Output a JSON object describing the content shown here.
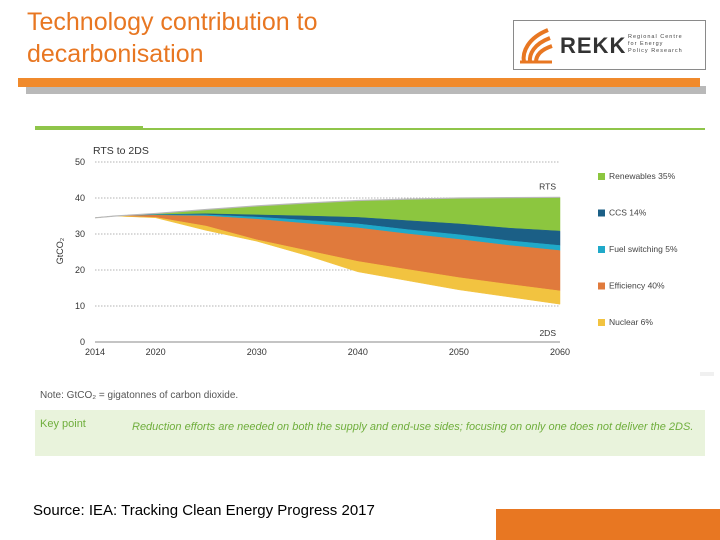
{
  "slide": {
    "title": "Technology contribution to decarbonisation",
    "source": "Source: IEA: Tracking Clean Energy Progress 2017"
  },
  "logo": {
    "name": "REKK",
    "tagline_lines": [
      "Regional Centre",
      "for Energy",
      "Policy Research"
    ]
  },
  "figure": {
    "note": "Note: GtCO₂ = gigatonnes of carbon dioxide.",
    "key_point_label": "Key point",
    "key_point_text": "Reduction efforts are needed on both the supply and end-use sides; focusing on only one does not deliver the 2DS."
  },
  "colors": {
    "accent": "#e87722",
    "renewables": "#8cc63f",
    "ccs": "#1b5f86",
    "fuel_switching": "#1fa9c9",
    "efficiency": "#e07a3c",
    "nuclear": "#f2c340",
    "keypoint_text": "#6fae3c"
  },
  "chart_data": {
    "type": "area",
    "title": "RTS to 2DS",
    "xlabel": "",
    "ylabel": "GtCO₂",
    "x": [
      2014,
      2016,
      2020,
      2025,
      2030,
      2035,
      2040,
      2045,
      2050,
      2055,
      2060
    ],
    "x_ticks": [
      "2014",
      "2020",
      "2030",
      "2040",
      "2050",
      "2060"
    ],
    "y_ticks": [
      "0",
      "10",
      "20",
      "30",
      "40",
      "50"
    ],
    "ylim": [
      0,
      50
    ],
    "grid": true,
    "rts": [
      34.5,
      35.0,
      35.7,
      36.8,
      37.8,
      38.6,
      39.3,
      39.7,
      40.0,
      40.1,
      40.2
    ],
    "two_ds": [
      34.5,
      35.0,
      34.5,
      31.0,
      27.0,
      23.0,
      19.5,
      17.0,
      14.5,
      12.5,
      10.5
    ],
    "series": [
      {
        "name": "Renewables",
        "label": "Renewables 35%",
        "values": [
          0,
          0,
          0.3,
          1.2,
          2.5,
          3.6,
          4.7,
          6.0,
          7.2,
          8.5,
          9.4
        ]
      },
      {
        "name": "CCS",
        "label": "CCS 14%",
        "values": [
          0,
          0,
          0.1,
          0.3,
          0.6,
          1.2,
          1.8,
          2.5,
          3.0,
          3.5,
          4.0
        ]
      },
      {
        "name": "Fuel switching",
        "label": "Fuel switching 5%",
        "values": [
          0,
          0,
          0.1,
          0.3,
          0.6,
          0.9,
          1.1,
          1.2,
          1.3,
          1.3,
          1.4
        ]
      },
      {
        "name": "Efficiency",
        "label": "Efficiency 40%",
        "values": [
          0,
          0,
          0.6,
          2.8,
          5.7,
          7.5,
          9.3,
          9.9,
          10.6,
          10.8,
          11.2
        ]
      },
      {
        "name": "Nuclear",
        "label": "Nuclear 6%",
        "values": [
          0,
          0,
          0.1,
          1.2,
          0.4,
          1.4,
          2.9,
          3.1,
          3.4,
          3.5,
          3.7
        ]
      }
    ],
    "annotations": [
      "RTS",
      "2DS"
    ]
  }
}
